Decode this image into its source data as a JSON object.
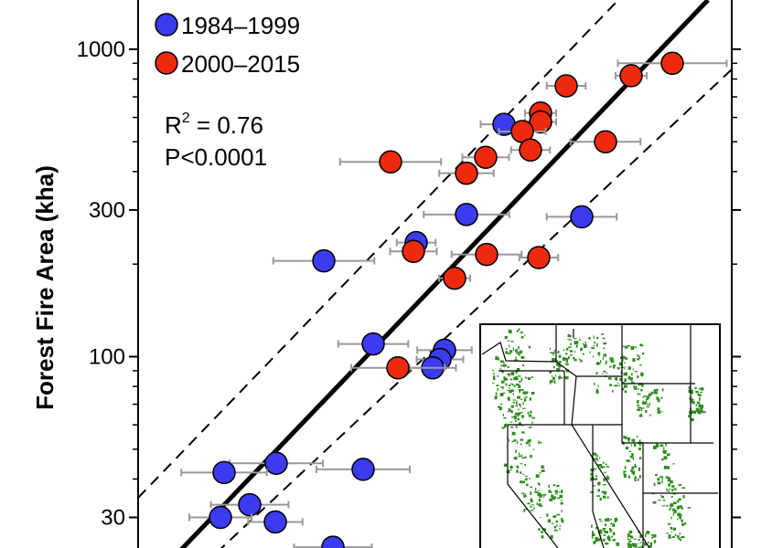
{
  "chart_data": {
    "type": "scatter",
    "ylabel": "Forest Fire Area (kha)",
    "yscale": "log",
    "y_ticks": [
      30,
      100,
      300,
      1000
    ],
    "y_tick_labels": [
      "30",
      "100",
      "300",
      "1000"
    ],
    "legend_position": "top-left",
    "annotations": {
      "r2_prefix": "R",
      "r2_sup": "2",
      "r2_value": " = 0.76",
      "p_value": "P<0.0001"
    },
    "colors": {
      "series_1984_1999": "#3b3bf0",
      "series_2000_2015": "#ee2a0e",
      "errorbar": "#999999",
      "fit": "#000000"
    },
    "series": [
      {
        "name": "1984–1999",
        "points": [
          {
            "y": 570,
            "xerr": 0.3
          },
          {
            "y": 290,
            "xerr": 0.55
          },
          {
            "y": 285,
            "xerr": 0.45
          },
          {
            "y": 235,
            "xerr": 0.25
          },
          {
            "y": 205,
            "xerr": 0.65
          },
          {
            "y": 110,
            "xerr": 0.45
          },
          {
            "y": 105,
            "xerr": 0.35
          },
          {
            "y": 98,
            "xerr": 0.3
          },
          {
            "y": 92,
            "xerr": 0.3
          },
          {
            "y": 45,
            "xerr": 0.6
          },
          {
            "y": 43,
            "xerr": 0.6
          },
          {
            "y": 42,
            "xerr": 0.55
          },
          {
            "y": 33,
            "xerr": 0.5
          },
          {
            "y": 30,
            "xerr": 0.4
          },
          {
            "y": 29,
            "xerr": 0.35
          },
          {
            "y": 24,
            "xerr": 0.5
          }
        ]
      },
      {
        "name": "2000–2015",
        "points": [
          {
            "y": 900,
            "xerr": 0.7
          },
          {
            "y": 820,
            "xerr": 0.2
          },
          {
            "y": 760,
            "xerr": 0.25
          },
          {
            "y": 620,
            "xerr": 0.2
          },
          {
            "y": 580,
            "xerr": 0.2
          },
          {
            "y": 540,
            "xerr": 0.3
          },
          {
            "y": 500,
            "xerr": 0.45
          },
          {
            "y": 470,
            "xerr": 0.25
          },
          {
            "y": 445,
            "xerr": 0.3
          },
          {
            "y": 430,
            "xerr": 0.65
          },
          {
            "y": 395,
            "xerr": 0.35
          },
          {
            "y": 220,
            "xerr": 0.3
          },
          {
            "y": 215,
            "xerr": 0.45
          },
          {
            "y": 210,
            "xerr": 0.25
          },
          {
            "y": 180,
            "xerr": 0.2
          },
          {
            "y": 92,
            "xerr": 0.6
          }
        ]
      }
    ]
  }
}
